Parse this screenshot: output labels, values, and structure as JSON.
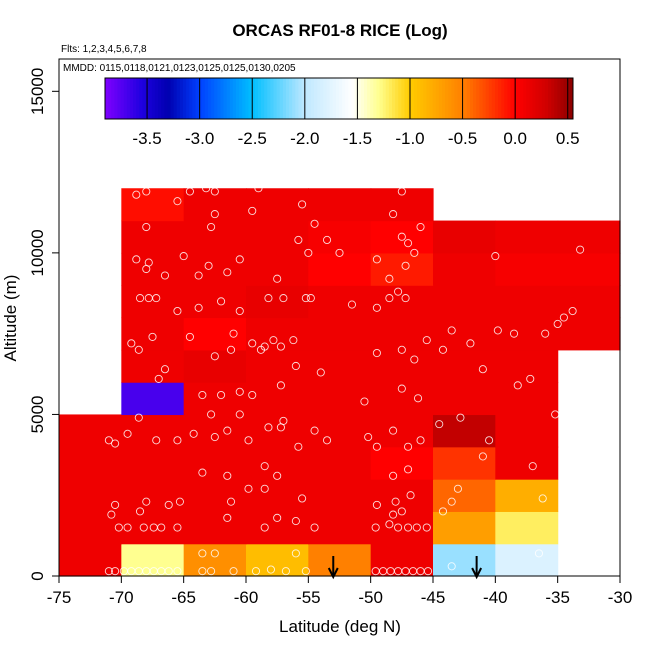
{
  "chart_data": {
    "type": "heatmap",
    "title": "ORCAS RF01-8 RICE (Log)",
    "flights_note": "Flts: 1,2,3,4,5,6,7,8",
    "dates_note": "MMDD: 0115,0118,0121,0123,0125,0125,0130,0205",
    "xlabel": "Latitude (deg N)",
    "ylabel": "Altitude (m)",
    "xlim": [
      -75,
      -30
    ],
    "ylim": [
      0,
      16000
    ],
    "x_ticks": [
      -75,
      -70,
      -65,
      -60,
      -55,
      -50,
      -45,
      -40,
      -35,
      -30
    ],
    "x_tick_labels": [
      "-75",
      "-70",
      "-65",
      "-60",
      "-55",
      "-50",
      "-45",
      "-40",
      "-35",
      "-30"
    ],
    "y_ticks": [
      0,
      5000,
      10000,
      15000
    ],
    "y_tick_labels": [
      "0",
      "5000",
      "10000",
      "15000"
    ],
    "colorbar": {
      "range": [
        -3.9,
        0.55
      ],
      "ticks": [
        -3.5,
        -3.0,
        -2.5,
        -2.0,
        -1.5,
        -1.0,
        -0.5,
        0.0,
        0.5
      ],
      "tick_labels": [
        "-3.5",
        "-3.0",
        "-2.5",
        "-2.0",
        "-1.5",
        "-1.0",
        "-0.5",
        "0.0",
        "0.5"
      ],
      "stops": [
        {
          "v": -3.9,
          "c": "#7f00ff"
        },
        {
          "v": -3.55,
          "c": "#1f00e0"
        },
        {
          "v": -3.3,
          "c": "#0000b0"
        },
        {
          "v": -3.0,
          "c": "#0040ff"
        },
        {
          "v": -2.5,
          "c": "#00bfff"
        },
        {
          "v": -2.0,
          "c": "#bfe8ff"
        },
        {
          "v": -1.55,
          "c": "#ffffff"
        },
        {
          "v": -1.3,
          "c": "#ffff90"
        },
        {
          "v": -1.0,
          "c": "#ffcc00"
        },
        {
          "v": -0.5,
          "c": "#ff8000"
        },
        {
          "v": 0.0,
          "c": "#ff0000"
        },
        {
          "v": 0.3,
          "c": "#d00000"
        },
        {
          "v": 0.55,
          "c": "#8b0000"
        }
      ]
    },
    "lat_bin_edges": [
      -75,
      -70,
      -65,
      -60,
      -55,
      -50,
      -45,
      -40,
      -35,
      -30
    ],
    "alt_bin_edges": [
      0,
      1000,
      2000,
      3000,
      4000,
      5000,
      6000,
      7000,
      8000,
      9000,
      10000,
      11000,
      12000
    ],
    "cells": [
      {
        "lat": -72.5,
        "alt": 500,
        "v": 0.1
      },
      {
        "lat": -67.5,
        "alt": 500,
        "v": -1.3
      },
      {
        "lat": -62.5,
        "alt": 500,
        "v": -0.6
      },
      {
        "lat": -57.5,
        "alt": 500,
        "v": -0.9
      },
      {
        "lat": -52.5,
        "alt": 500,
        "v": -0.5
      },
      {
        "lat": -47.5,
        "alt": 500,
        "v": 0.1
      },
      {
        "lat": -42.5,
        "alt": 500,
        "v": -2.1
      },
      {
        "lat": -37.5,
        "alt": 500,
        "v": -1.8
      },
      {
        "lat": -72.5,
        "alt": 1500,
        "v": 0.1
      },
      {
        "lat": -67.5,
        "alt": 1500,
        "v": 0.1
      },
      {
        "lat": -62.5,
        "alt": 1500,
        "v": 0.1
      },
      {
        "lat": -57.5,
        "alt": 1500,
        "v": 0.1
      },
      {
        "lat": -52.5,
        "alt": 1500,
        "v": 0.1
      },
      {
        "lat": -47.5,
        "alt": 1500,
        "v": 0.1
      },
      {
        "lat": -42.5,
        "alt": 1500,
        "v": -0.7
      },
      {
        "lat": -37.5,
        "alt": 1500,
        "v": -1.2
      },
      {
        "lat": -72.5,
        "alt": 2500,
        "v": 0.1
      },
      {
        "lat": -67.5,
        "alt": 2500,
        "v": 0.1
      },
      {
        "lat": -62.5,
        "alt": 2500,
        "v": 0.1
      },
      {
        "lat": -57.5,
        "alt": 2500,
        "v": 0.1
      },
      {
        "lat": -52.5,
        "alt": 2500,
        "v": 0.1
      },
      {
        "lat": -47.5,
        "alt": 2500,
        "v": 0.1
      },
      {
        "lat": -42.5,
        "alt": 2500,
        "v": -0.4
      },
      {
        "lat": -37.5,
        "alt": 2500,
        "v": -0.8
      },
      {
        "lat": -72.5,
        "alt": 3500,
        "v": 0.1
      },
      {
        "lat": -67.5,
        "alt": 3500,
        "v": 0.1
      },
      {
        "lat": -62.5,
        "alt": 3500,
        "v": 0.1
      },
      {
        "lat": -57.5,
        "alt": 3500,
        "v": 0.1
      },
      {
        "lat": -52.5,
        "alt": 3500,
        "v": 0.1
      },
      {
        "lat": -47.5,
        "alt": 3500,
        "v": 0.0
      },
      {
        "lat": -42.5,
        "alt": 3500,
        "v": -0.2
      },
      {
        "lat": -37.5,
        "alt": 3500,
        "v": 0.1
      },
      {
        "lat": -72.5,
        "alt": 4500,
        "v": 0.1
      },
      {
        "lat": -67.5,
        "alt": 4500,
        "v": 0.1
      },
      {
        "lat": -62.5,
        "alt": 4500,
        "v": 0.1
      },
      {
        "lat": -57.5,
        "alt": 4500,
        "v": 0.1
      },
      {
        "lat": -52.5,
        "alt": 4500,
        "v": 0.1
      },
      {
        "lat": -47.5,
        "alt": 4500,
        "v": 0.1
      },
      {
        "lat": -42.5,
        "alt": 4500,
        "v": 0.35
      },
      {
        "lat": -37.5,
        "alt": 4500,
        "v": 0.1
      },
      {
        "lat": -67.5,
        "alt": 5500,
        "v": -3.7
      },
      {
        "lat": -62.5,
        "alt": 5500,
        "v": 0.1
      },
      {
        "lat": -57.5,
        "alt": 5500,
        "v": 0.1
      },
      {
        "lat": -52.5,
        "alt": 5500,
        "v": 0.1
      },
      {
        "lat": -47.5,
        "alt": 5500,
        "v": 0.1
      },
      {
        "lat": -42.5,
        "alt": 5500,
        "v": 0.1
      },
      {
        "lat": -37.5,
        "alt": 5500,
        "v": 0.1
      },
      {
        "lat": -67.5,
        "alt": 6500,
        "v": 0.1
      },
      {
        "lat": -62.5,
        "alt": 6500,
        "v": 0.15
      },
      {
        "lat": -57.5,
        "alt": 6500,
        "v": 0.1
      },
      {
        "lat": -52.5,
        "alt": 6500,
        "v": 0.1
      },
      {
        "lat": -47.5,
        "alt": 6500,
        "v": 0.1
      },
      {
        "lat": -42.5,
        "alt": 6500,
        "v": 0.1
      },
      {
        "lat": -37.5,
        "alt": 6500,
        "v": 0.1
      },
      {
        "lat": -67.5,
        "alt": 7500,
        "v": 0.1
      },
      {
        "lat": -62.5,
        "alt": 7500,
        "v": 0.0
      },
      {
        "lat": -57.5,
        "alt": 7500,
        "v": 0.1
      },
      {
        "lat": -52.5,
        "alt": 7500,
        "v": 0.1
      },
      {
        "lat": -47.5,
        "alt": 7500,
        "v": 0.1
      },
      {
        "lat": -42.5,
        "alt": 7500,
        "v": 0.1
      },
      {
        "lat": -37.5,
        "alt": 7500,
        "v": 0.1
      },
      {
        "lat": -32.5,
        "alt": 7500,
        "v": 0.1
      },
      {
        "lat": -67.5,
        "alt": 8500,
        "v": 0.1
      },
      {
        "lat": -62.5,
        "alt": 8500,
        "v": 0.1
      },
      {
        "lat": -57.5,
        "alt": 8500,
        "v": 0.15
      },
      {
        "lat": -52.5,
        "alt": 8500,
        "v": 0.1
      },
      {
        "lat": -47.5,
        "alt": 8500,
        "v": 0.1
      },
      {
        "lat": -42.5,
        "alt": 8500,
        "v": 0.1
      },
      {
        "lat": -37.5,
        "alt": 8500,
        "v": 0.1
      },
      {
        "lat": -32.5,
        "alt": 8500,
        "v": 0.1
      },
      {
        "lat": -67.5,
        "alt": 9500,
        "v": 0.1
      },
      {
        "lat": -62.5,
        "alt": 9500,
        "v": 0.1
      },
      {
        "lat": -57.5,
        "alt": 9500,
        "v": 0.1
      },
      {
        "lat": -52.5,
        "alt": 9500,
        "v": 0.0
      },
      {
        "lat": -47.5,
        "alt": 9500,
        "v": -0.1
      },
      {
        "lat": -42.5,
        "alt": 9500,
        "v": 0.1
      },
      {
        "lat": -37.5,
        "alt": 9500,
        "v": 0.05
      },
      {
        "lat": -32.5,
        "alt": 9500,
        "v": 0.05
      },
      {
        "lat": -67.5,
        "alt": 10500,
        "v": 0.1
      },
      {
        "lat": -62.5,
        "alt": 10500,
        "v": 0.1
      },
      {
        "lat": -57.5,
        "alt": 10500,
        "v": 0.1
      },
      {
        "lat": -52.5,
        "alt": 10500,
        "v": 0.05
      },
      {
        "lat": -47.5,
        "alt": 10500,
        "v": 0.0
      },
      {
        "lat": -42.5,
        "alt": 10500,
        "v": 0.15
      },
      {
        "lat": -37.5,
        "alt": 10500,
        "v": 0.1
      },
      {
        "lat": -32.5,
        "alt": 10500,
        "v": 0.1
      },
      {
        "lat": -67.5,
        "alt": 11500,
        "v": -0.05
      },
      {
        "lat": -62.5,
        "alt": 11500,
        "v": 0.1
      },
      {
        "lat": -57.5,
        "alt": 11500,
        "v": 0.1
      },
      {
        "lat": -52.5,
        "alt": 11500,
        "v": 0.1
      },
      {
        "lat": -47.5,
        "alt": 11500,
        "v": 0.1
      }
    ],
    "points": [
      [
        -71.0,
        150
      ],
      [
        -70.5,
        150
      ],
      [
        -69.8,
        150
      ],
      [
        -69.2,
        150
      ],
      [
        -68.6,
        150
      ],
      [
        -68.0,
        150
      ],
      [
        -67.4,
        150
      ],
      [
        -66.8,
        150
      ],
      [
        -66.2,
        150
      ],
      [
        -65.5,
        150
      ],
      [
        -63.5,
        150
      ],
      [
        -62.8,
        150
      ],
      [
        -61.0,
        150
      ],
      [
        -59.2,
        150
      ],
      [
        -58.0,
        200
      ],
      [
        -56.8,
        150
      ],
      [
        -55.2,
        150
      ],
      [
        -49.6,
        150
      ],
      [
        -49.0,
        150
      ],
      [
        -48.4,
        150
      ],
      [
        -47.8,
        150
      ],
      [
        -47.2,
        150
      ],
      [
        -46.6,
        150
      ],
      [
        -46.0,
        150
      ],
      [
        -45.4,
        150
      ],
      [
        -43.5,
        300
      ],
      [
        -36.5,
        700
      ],
      [
        -63.5,
        700
      ],
      [
        -62.5,
        700
      ],
      [
        -56.0,
        700
      ],
      [
        -70.2,
        1500
      ],
      [
        -69.5,
        1500
      ],
      [
        -68.2,
        1500
      ],
      [
        -67.4,
        1500
      ],
      [
        -66.8,
        1500
      ],
      [
        -65.5,
        1500
      ],
      [
        -70.8,
        1900
      ],
      [
        -68.5,
        2000
      ],
      [
        -61.5,
        1800
      ],
      [
        -58.5,
        1500
      ],
      [
        -57.5,
        1800
      ],
      [
        -56.0,
        1700
      ],
      [
        -54.5,
        1500
      ],
      [
        -49.6,
        1500
      ],
      [
        -48.5,
        1600
      ],
      [
        -47.8,
        1500
      ],
      [
        -47.0,
        1500
      ],
      [
        -46.3,
        1500
      ],
      [
        -45.5,
        1500
      ],
      [
        -48.2,
        1900
      ],
      [
        -47.5,
        2000
      ],
      [
        -44.2,
        2000
      ],
      [
        -43.5,
        2300
      ],
      [
        -36.2,
        2400
      ],
      [
        -70.5,
        2200
      ],
      [
        -68.0,
        2300
      ],
      [
        -66.2,
        2200
      ],
      [
        -65.3,
        2300
      ],
      [
        -61.2,
        2300
      ],
      [
        -59.8,
        2700
      ],
      [
        -58.5,
        2700
      ],
      [
        -55.5,
        2400
      ],
      [
        -49.5,
        2200
      ],
      [
        -48.0,
        2300
      ],
      [
        -46.8,
        2500
      ],
      [
        -43.0,
        2700
      ],
      [
        -63.5,
        3200
      ],
      [
        -61.5,
        3100
      ],
      [
        -58.5,
        3400
      ],
      [
        -57.5,
        3100
      ],
      [
        -48.2,
        3100
      ],
      [
        -47.0,
        3300
      ],
      [
        -41.0,
        3700
      ],
      [
        -37.0,
        3400
      ],
      [
        -64.2,
        4400
      ],
      [
        -62.5,
        4300
      ],
      [
        -61.5,
        4500
      ],
      [
        -59.8,
        4200
      ],
      [
        -58.2,
        4600
      ],
      [
        -57.2,
        4600
      ],
      [
        -55.8,
        4000
      ],
      [
        -53.5,
        4200
      ],
      [
        -50.2,
        4300
      ],
      [
        -49.5,
        4000
      ],
      [
        -48.2,
        4500
      ],
      [
        -47.0,
        4000
      ],
      [
        -46.0,
        4200
      ],
      [
        -44.5,
        4700
      ],
      [
        -42.8,
        4900
      ],
      [
        -40.5,
        4200
      ],
      [
        -35.2,
        5000
      ],
      [
        -71.0,
        4200
      ],
      [
        -70.5,
        4100
      ],
      [
        -69.5,
        4400
      ],
      [
        -68.6,
        4900
      ],
      [
        -67.2,
        4200
      ],
      [
        -65.5,
        4200
      ],
      [
        -62.8,
        5000
      ],
      [
        -60.5,
        5000
      ],
      [
        -57.0,
        4800
      ],
      [
        -54.5,
        4500
      ],
      [
        -63.5,
        5600
      ],
      [
        -62.0,
        5600
      ],
      [
        -60.5,
        5700
      ],
      [
        -59.5,
        5600
      ],
      [
        -57.2,
        5900
      ],
      [
        -50.5,
        5400
      ],
      [
        -47.5,
        5800
      ],
      [
        -46.2,
        5500
      ],
      [
        -41.0,
        6400
      ],
      [
        -38.2,
        5900
      ],
      [
        -37.2,
        6100
      ],
      [
        -67.0,
        6100
      ],
      [
        -66.5,
        6400
      ],
      [
        -62.5,
        6800
      ],
      [
        -61.2,
        7000
      ],
      [
        -58.5,
        7100
      ],
      [
        -57.8,
        7300
      ],
      [
        -57.2,
        7100
      ],
      [
        -56.0,
        6500
      ],
      [
        -54.0,
        6300
      ],
      [
        -49.5,
        6900
      ],
      [
        -47.5,
        7000
      ],
      [
        -46.5,
        6700
      ],
      [
        -45.5,
        7300
      ],
      [
        -43.5,
        7600
      ],
      [
        -42.0,
        7200
      ],
      [
        -69.2,
        7200
      ],
      [
        -68.6,
        7000
      ],
      [
        -67.5,
        7400
      ],
      [
        -64.5,
        7400
      ],
      [
        -61.0,
        7500
      ],
      [
        -59.5,
        7200
      ],
      [
        -58.8,
        7000
      ],
      [
        -56.2,
        7300
      ],
      [
        -44.2,
        7000
      ],
      [
        -39.8,
        7600
      ],
      [
        -38.5,
        7500
      ],
      [
        -36.0,
        7500
      ],
      [
        -35.0,
        7800
      ],
      [
        -34.5,
        8000
      ],
      [
        -33.8,
        8200
      ],
      [
        -68.5,
        8600
      ],
      [
        -67.8,
        8600
      ],
      [
        -67.2,
        8600
      ],
      [
        -65.5,
        8200
      ],
      [
        -63.8,
        8300
      ],
      [
        -62.0,
        8500
      ],
      [
        -60.5,
        8200
      ],
      [
        -58.2,
        8600
      ],
      [
        -57.0,
        8600
      ],
      [
        -55.2,
        8600
      ],
      [
        -54.8,
        8600
      ],
      [
        -51.5,
        8400
      ],
      [
        -49.5,
        8300
      ],
      [
        -48.5,
        8600
      ],
      [
        -47.8,
        8800
      ],
      [
        -47.2,
        8600
      ],
      [
        -66.5,
        9300
      ],
      [
        -61.5,
        9400
      ],
      [
        -57.5,
        9200
      ],
      [
        -48.5,
        9200
      ],
      [
        -47.2,
        9600
      ],
      [
        -68.0,
        9500
      ],
      [
        -67.8,
        9700
      ],
      [
        -68.8,
        9800
      ],
      [
        -63.8,
        9300
      ],
      [
        -63.0,
        9600
      ],
      [
        -65.0,
        9900
      ],
      [
        -60.5,
        9800
      ],
      [
        -55.0,
        10000
      ],
      [
        -52.5,
        10000
      ],
      [
        -49.5,
        9800
      ],
      [
        -47.0,
        10300
      ],
      [
        -46.5,
        10000
      ],
      [
        -40.0,
        9900
      ],
      [
        -33.2,
        10100
      ],
      [
        -55.8,
        10400
      ],
      [
        -53.5,
        10400
      ],
      [
        -47.5,
        10500
      ],
      [
        -68.0,
        10800
      ],
      [
        -62.8,
        10800
      ],
      [
        -54.5,
        10900
      ],
      [
        -46.0,
        10800
      ],
      [
        -62.5,
        11200
      ],
      [
        -59.5,
        11300
      ],
      [
        -55.5,
        11500
      ],
      [
        -48.2,
        11200
      ],
      [
        -68.8,
        11800
      ],
      [
        -68.0,
        11900
      ],
      [
        -64.5,
        11900
      ],
      [
        -63.2,
        12000
      ],
      [
        -62.5,
        11900
      ],
      [
        -65.5,
        11600
      ],
      [
        -59.0,
        12000
      ],
      [
        -47.5,
        11900
      ]
    ],
    "arrow_latitudes": [
      -53,
      -41.5
    ]
  }
}
